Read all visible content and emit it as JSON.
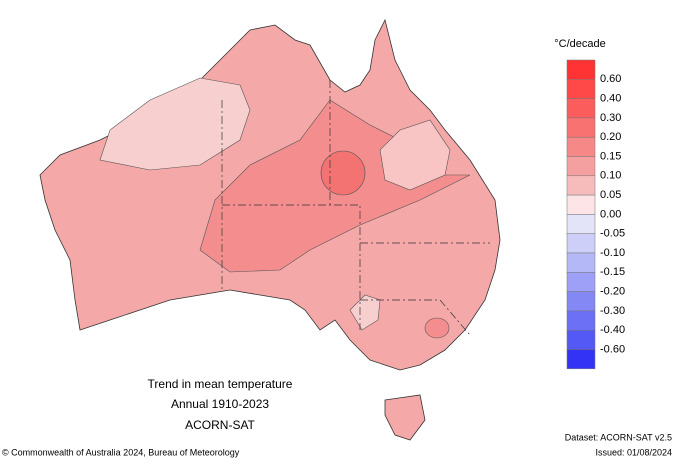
{
  "title": {
    "lines": [
      "Trend in mean temperature",
      "Annual 1910-2023",
      "ACORN-SAT"
    ]
  },
  "legend": {
    "unit": "°C/decade",
    "labels": [
      "0.60",
      "0.40",
      "0.30",
      "0.20",
      "0.15",
      "0.10",
      "0.05",
      "0.00",
      "-0.05",
      "-0.10",
      "-0.15",
      "-0.20",
      "-0.30",
      "-0.40",
      "-0.60"
    ],
    "colors": [
      "#ff3333",
      "#ff4848",
      "#fb5c5c",
      "#f87272",
      "#f68888",
      "#f5a0a0",
      "#f6bcbc",
      "#fde4e6",
      "#e4e4f8",
      "#cdcff8",
      "#b4b8f6",
      "#9da0f6",
      "#8488f5",
      "#6c70f5",
      "#5458f5",
      "#3333f5"
    ]
  },
  "footer": {
    "copyright": "© Commonwealth of Australia 2024, Bureau of Meteorology",
    "dataset": "Dataset: ACORN-SAT v2.5",
    "issued": "Issued: 01/08/2024"
  }
}
